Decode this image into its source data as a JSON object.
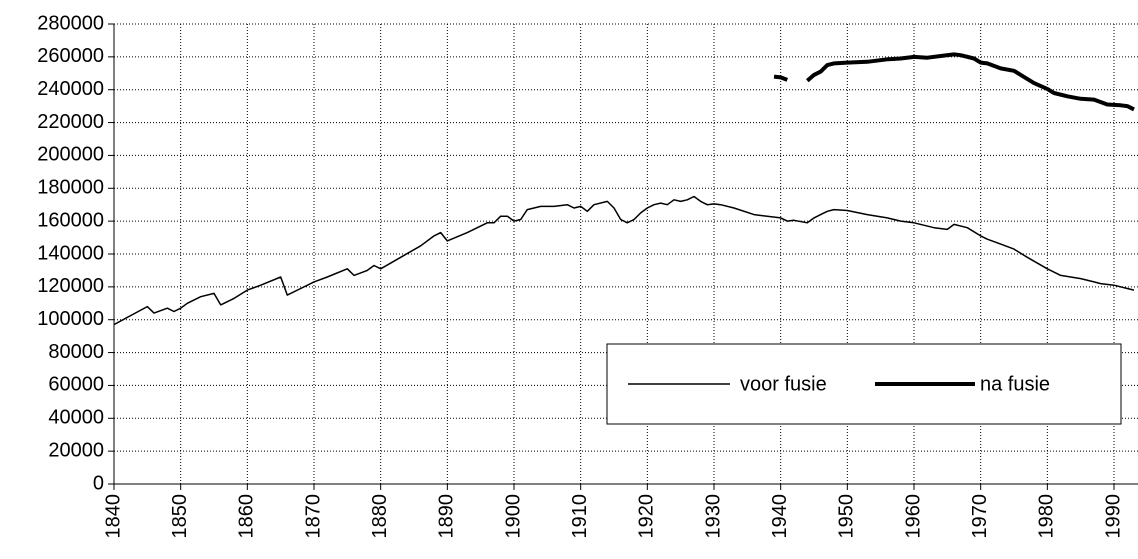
{
  "chart_data": {
    "type": "line",
    "xlim": [
      1840,
      1993.6
    ],
    "xticks": [
      1840,
      1850,
      1860,
      1870,
      1880,
      1890,
      1900,
      1910,
      1920,
      1930,
      1940,
      1950,
      1960,
      1970,
      1980,
      1990
    ],
    "ylim": [
      0,
      280000
    ],
    "yticks": [
      0,
      20000,
      40000,
      60000,
      80000,
      100000,
      120000,
      140000,
      160000,
      180000,
      200000,
      220000,
      240000,
      260000,
      280000
    ],
    "grid": true,
    "legend": "right",
    "series": [
      {
        "name": "voor fusie",
        "color": "#000000",
        "x": [
          1840,
          1845,
          1846,
          1848,
          1849,
          1850,
          1851,
          1853,
          1855,
          1856,
          1858,
          1860,
          1862,
          1865,
          1866,
          1868,
          1870,
          1872,
          1875,
          1876,
          1878,
          1879,
          1880,
          1883,
          1886,
          1888,
          1889,
          1890,
          1893,
          1896,
          1897,
          1898,
          1899,
          1900,
          1901,
          1902,
          1904,
          1906,
          1908,
          1909,
          1910,
          1911,
          1912,
          1914,
          1915,
          1916,
          1917,
          1918,
          1919,
          1920,
          1921,
          1922,
          1923,
          1924,
          1925,
          1926,
          1927,
          1928,
          1929,
          1930,
          1931,
          1933,
          1936,
          1940,
          1941,
          1942,
          1944,
          1945,
          1946,
          1947,
          1948,
          1950,
          1953,
          1956,
          1958,
          1960,
          1963,
          1965,
          1966,
          1968,
          1970,
          1971,
          1973,
          1975,
          1977,
          1980,
          1982,
          1985,
          1987,
          1988,
          1990,
          1992,
          1993
        ],
        "values": [
          97000,
          108000,
          104000,
          107000,
          105000,
          107000,
          110000,
          114000,
          116000,
          109000,
          113000,
          118000,
          121000,
          126000,
          115000,
          119000,
          123000,
          126000,
          131000,
          127000,
          130000,
          133000,
          131000,
          138000,
          145000,
          151000,
          153000,
          148000,
          153000,
          159000,
          159000,
          163000,
          163000,
          160000,
          161000,
          167000,
          169000,
          169000,
          170000,
          168000,
          169000,
          166000,
          170000,
          172000,
          168000,
          161000,
          159000,
          161000,
          165000,
          168000,
          170000,
          171000,
          170000,
          173000,
          172000,
          173000,
          175000,
          172000,
          170000,
          170500,
          170000,
          168000,
          164000,
          162000,
          160000,
          160500,
          159000,
          162000,
          164000,
          166000,
          167000,
          166500,
          164000,
          162000,
          160000,
          159000,
          156000,
          155000,
          158000,
          156000,
          151000,
          149000,
          146000,
          143000,
          138000,
          131000,
          127000,
          125000,
          123000,
          122000,
          121000,
          119000,
          118000
        ]
      },
      {
        "name": "na fusie",
        "color": "#000000",
        "x": [
          1939,
          1940,
          1941,
          1942,
          1944,
          1945,
          1946,
          1947,
          1948,
          1950,
          1953,
          1956,
          1958,
          1960,
          1962,
          1964,
          1966,
          1967,
          1969,
          1970,
          1971,
          1973,
          1975,
          1976,
          1978,
          1980,
          1981,
          1983,
          1985,
          1987,
          1989,
          1991,
          1992,
          1993
        ],
        "values": [
          248000,
          247500,
          246000,
          null,
          245500,
          249000,
          251000,
          255000,
          256000,
          256500,
          257000,
          258500,
          259000,
          260000,
          259500,
          260500,
          261500,
          261000,
          259000,
          256500,
          256000,
          253000,
          251500,
          249000,
          244000,
          240500,
          238000,
          236000,
          234500,
          234000,
          231000,
          230500,
          230000,
          228000
        ]
      }
    ]
  }
}
